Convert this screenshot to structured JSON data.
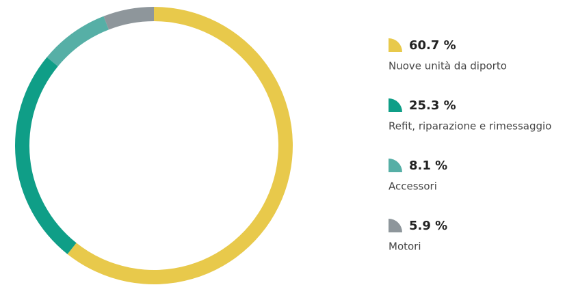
{
  "chart_data": {
    "type": "pie",
    "categories": [
      "Nuove unità da diporto",
      "Refit, riparazione e rimessaggio",
      "Accessori",
      "Motori"
    ],
    "values": [
      60.7,
      25.3,
      8.1,
      5.9
    ],
    "value_labels": [
      "60.7 %",
      "25.3 %",
      "8.1 %",
      "5.9 %"
    ],
    "colors": [
      "#e8c94b",
      "#0f9e87",
      "#56afa6",
      "#8e969b"
    ]
  }
}
